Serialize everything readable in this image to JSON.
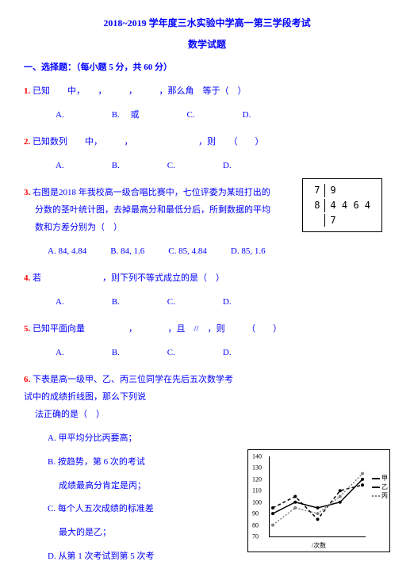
{
  "header": {
    "line1": "2018~2019 学年度三水实验中学高一第三学段考试",
    "line2": "数学试题"
  },
  "section1": "一、选择题：（每小题 5 分，共 60 分）",
  "q1": {
    "num": "1.",
    "text": "已知　　中，　　，　　　，　　　，那么角　等于（　）",
    "A": "A.",
    "B": "B.　 或",
    "C": "C.",
    "D": "D."
  },
  "q2": {
    "num": "2.",
    "text": "已知数列　　中，　　　，　　　　　　　　，则　　（　　）",
    "A": "A.",
    "B": "B.",
    "C": "C.",
    "D": "D."
  },
  "q3": {
    "num": "3.",
    "line1": "右图是2018 年我校高一级合唱比赛中，七位评委为某班打出的",
    "line2": "分数的茎叶统计图，去掉最高分和最低分后，所剩数据的平均",
    "line3": "数和方差分别为（　）",
    "A": "A. 84, 4.84",
    "B": "B. 84, 1.6",
    "C": "C. 85, 4.84",
    "D": "D. 85, 1.6"
  },
  "stemleaf": {
    "r1s": "7",
    "r1l": "9",
    "r2s": "8",
    "r2l": "4  4  6  4",
    "r3s": "",
    "r3l": "7"
  },
  "q4": {
    "num": "4.",
    "text": "若　　　　　　　，则下列不等式成立的是（　）",
    "A": "A.",
    "B": "B.",
    "C": "C.",
    "D": "D."
  },
  "q5": {
    "num": "5.",
    "text": "已知平面向量　　　　　，　　　　，且　//　，则　　　（　　）",
    "A": "A.",
    "B": "B.",
    "C": "C.",
    "D": "D."
  },
  "q6": {
    "num": "6.",
    "line1": "下表是高一级甲、乙、丙三位同学在先后五次数学考试中的成绩折线图，那么下列说",
    "line2": "法正确的是（　）",
    "optA": "A. 甲平均分比丙要高；",
    "optB": "B. 按趋势，第 6 次的考试",
    "optB2": "成绩最高分肯定是丙；",
    "optC": "C. 每个人五次成绩的标准差",
    "optC2": "最大的是乙；",
    "optD": "D. 从第 1 次考试到第 5 次考"
  },
  "chart": {
    "yticks": [
      "140",
      "130",
      "120",
      "110",
      "100",
      "90",
      "80",
      "70"
    ],
    "yvals": [
      140,
      130,
      120,
      110,
      100,
      90,
      80,
      70
    ],
    "ymin": 70,
    "ymax": 140,
    "series": {
      "jia": {
        "label": "甲",
        "color": "#000000",
        "dash": "0",
        "points": [
          [
            1,
            90
          ],
          [
            2,
            100
          ],
          [
            3,
            95
          ],
          [
            4,
            100
          ],
          [
            5,
            120
          ]
        ]
      },
      "yi": {
        "label": "乙",
        "color": "#000000",
        "dash": "4,3",
        "points": [
          [
            1,
            95
          ],
          [
            2,
            105
          ],
          [
            3,
            85
          ],
          [
            4,
            110
          ],
          [
            5,
            115
          ]
        ]
      },
      "bing": {
        "label": "丙",
        "color": "#808080",
        "dash": "2,2",
        "points": [
          [
            1,
            80
          ],
          [
            2,
            95
          ],
          [
            3,
            90
          ],
          [
            4,
            105
          ],
          [
            5,
            125
          ]
        ]
      }
    },
    "xlabel": "/次数"
  }
}
